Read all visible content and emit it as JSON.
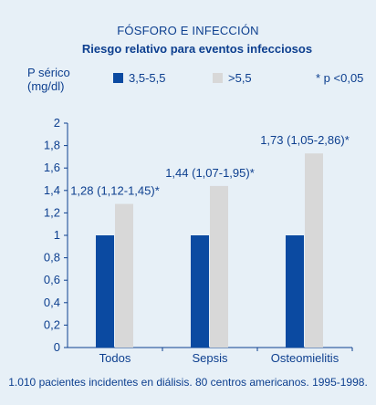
{
  "header": {
    "title": "FÓSFORO E INFECCIÓN",
    "subtitle": "Riesgo relativo para eventos infecciosos"
  },
  "y_axis_label_lines": [
    "P sérico",
    "(mg/dl)"
  ],
  "legend": [
    {
      "label": "3,5-5,5",
      "color": "#0b4aa1"
    },
    {
      "label": ">5,5",
      "color": "#d8d8d8"
    }
  ],
  "significance_note": "* p <0,05",
  "footer_note": "1.010 pacientes incidentes en diálisis. 80 centros americanos. 1995-1998.",
  "chart_data": {
    "type": "bar",
    "categories": [
      "Todos",
      "Sepsis",
      "Osteomielitis"
    ],
    "series": [
      {
        "name": "3,5-5,5",
        "values": [
          1,
          1,
          1
        ],
        "color": "#0b4aa1"
      },
      {
        "name": ">5,5",
        "values": [
          1.28,
          1.44,
          1.73
        ],
        "color": "#d8d8d8"
      }
    ],
    "annotations": [
      "1,28 (1,12-1,45)*",
      "1,44 (1,07-1,95)*",
      "1,73 (1,05-2,86)*"
    ],
    "yticks": [
      "0",
      "0,2",
      "0,4",
      "0,6",
      "0,8",
      "1",
      "1,2",
      "1,4",
      "1,6",
      "1,8",
      "2"
    ],
    "ylim": [
      0,
      2
    ],
    "grid": false,
    "legend_position": "top"
  }
}
